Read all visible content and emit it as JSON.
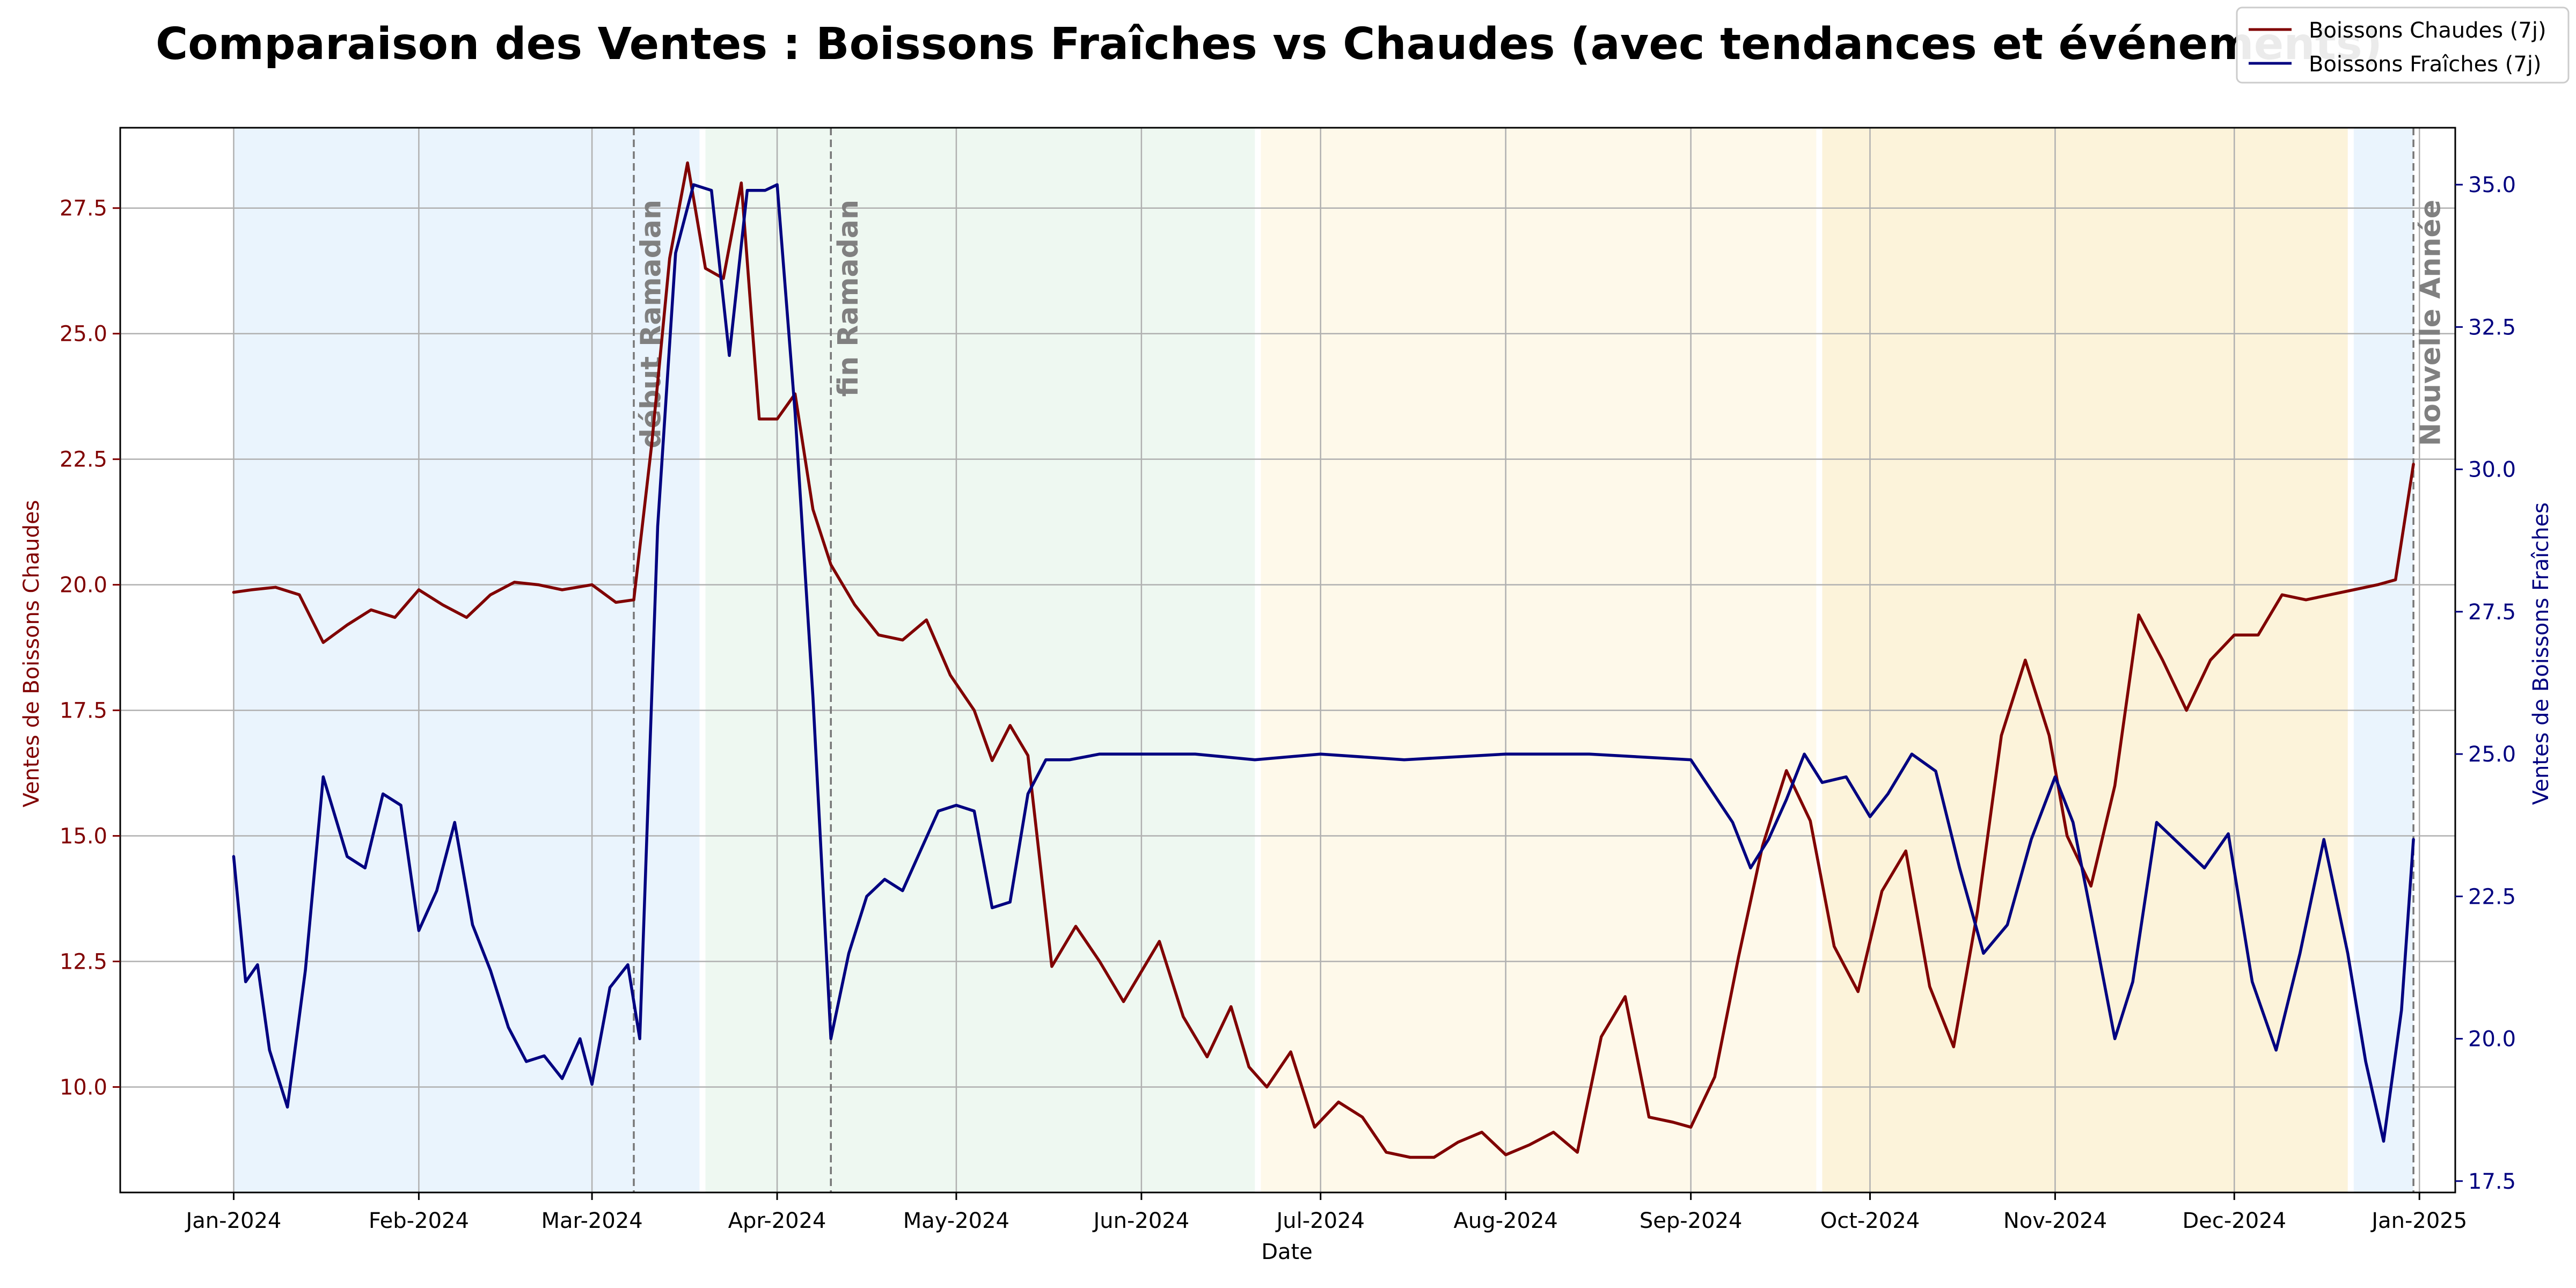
{
  "chart_data": {
    "type": "line",
    "title": "Comparaison des Ventes : Boissons Fraîches vs Chaudes (avec tendances et événements)",
    "xlabel": "Date",
    "ylabel_left": "Ventes de Boissons Chaudes",
    "ylabel_right": "Ventes de Boissons Fraîches",
    "x_range": [
      "2023-12-13",
      "2025-01-07"
    ],
    "ylim_left": [
      7.9,
      29.1
    ],
    "ylim_right": [
      17.3,
      36.0
    ],
    "grid": true,
    "legend_position": "top-right",
    "x_ticks": [
      {
        "date": "2024-01-01",
        "label": "Jan-2024"
      },
      {
        "date": "2024-02-01",
        "label": "Feb-2024"
      },
      {
        "date": "2024-03-01",
        "label": "Mar-2024"
      },
      {
        "date": "2024-04-01",
        "label": "Apr-2024"
      },
      {
        "date": "2024-05-01",
        "label": "May-2024"
      },
      {
        "date": "2024-06-01",
        "label": "Jun-2024"
      },
      {
        "date": "2024-07-01",
        "label": "Jul-2024"
      },
      {
        "date": "2024-08-01",
        "label": "Aug-2024"
      },
      {
        "date": "2024-09-01",
        "label": "Sep-2024"
      },
      {
        "date": "2024-10-01",
        "label": "Oct-2024"
      },
      {
        "date": "2024-11-01",
        "label": "Nov-2024"
      },
      {
        "date": "2024-12-01",
        "label": "Dec-2024"
      },
      {
        "date": "2025-01-01",
        "label": "Jan-2025"
      }
    ],
    "y_ticks_left": [
      "10.0",
      "12.5",
      "15.0",
      "17.5",
      "20.0",
      "22.5",
      "25.0",
      "27.5"
    ],
    "y_ticks_right": [
      "17.5",
      "20.0",
      "22.5",
      "25.0",
      "27.5",
      "30.0",
      "32.5",
      "35.0"
    ],
    "seasons": [
      {
        "start": "2024-01-01",
        "end": "2024-03-19",
        "color": "#eaf4fd"
      },
      {
        "start": "2024-03-20",
        "end": "2024-06-20",
        "color": "#eef8f1"
      },
      {
        "start": "2024-06-21",
        "end": "2024-09-22",
        "color": "#fef9ea"
      },
      {
        "start": "2024-09-23",
        "end": "2024-12-20",
        "color": "#fcf3da"
      },
      {
        "start": "2024-12-21",
        "end": "2024-12-31",
        "color": "#eaf4fd"
      }
    ],
    "events": [
      {
        "date": "2024-03-08",
        "label": "début Ramadan"
      },
      {
        "date": "2024-04-10",
        "label": "fin Ramadan"
      },
      {
        "date": "2024-12-31",
        "label": "Nouvelle Année"
      }
    ],
    "series": [
      {
        "name": "Boissons Chaudes (7j)",
        "axis": "left",
        "color": "#800000",
        "x": [
          "2024-01-01",
          "2024-01-04",
          "2024-01-08",
          "2024-01-12",
          "2024-01-16",
          "2024-01-20",
          "2024-01-24",
          "2024-01-28",
          "2024-02-01",
          "2024-02-05",
          "2024-02-09",
          "2024-02-13",
          "2024-02-17",
          "2024-02-21",
          "2024-02-25",
          "2024-03-01",
          "2024-03-05",
          "2024-03-08",
          "2024-03-11",
          "2024-03-14",
          "2024-03-17",
          "2024-03-20",
          "2024-03-23",
          "2024-03-26",
          "2024-03-29",
          "2024-04-01",
          "2024-04-04",
          "2024-04-07",
          "2024-04-10",
          "2024-04-14",
          "2024-04-18",
          "2024-04-22",
          "2024-04-26",
          "2024-04-30",
          "2024-05-04",
          "2024-05-07",
          "2024-05-10",
          "2024-05-13",
          "2024-05-17",
          "2024-05-21",
          "2024-05-25",
          "2024-05-29",
          "2024-06-01",
          "2024-06-04",
          "2024-06-08",
          "2024-06-12",
          "2024-06-16",
          "2024-06-19",
          "2024-06-22",
          "2024-06-26",
          "2024-06-30",
          "2024-07-04",
          "2024-07-08",
          "2024-07-12",
          "2024-07-16",
          "2024-07-20",
          "2024-07-24",
          "2024-07-28",
          "2024-08-01",
          "2024-08-05",
          "2024-08-09",
          "2024-08-13",
          "2024-08-17",
          "2024-08-21",
          "2024-08-25",
          "2024-08-29",
          "2024-09-01",
          "2024-09-05",
          "2024-09-09",
          "2024-09-13",
          "2024-09-17",
          "2024-09-21",
          "2024-09-25",
          "2024-09-29",
          "2024-10-03",
          "2024-10-07",
          "2024-10-11",
          "2024-10-15",
          "2024-10-19",
          "2024-10-23",
          "2024-10-27",
          "2024-10-31",
          "2024-11-03",
          "2024-11-07",
          "2024-11-11",
          "2024-11-15",
          "2024-11-19",
          "2024-11-23",
          "2024-11-27",
          "2024-12-01",
          "2024-12-05",
          "2024-12-09",
          "2024-12-13",
          "2024-12-17",
          "2024-12-21",
          "2024-12-25",
          "2024-12-28",
          "2024-12-31"
        ],
        "y": [
          19.85,
          19.9,
          19.95,
          19.8,
          18.85,
          19.2,
          19.5,
          19.35,
          19.9,
          19.6,
          19.35,
          19.8,
          20.05,
          20.0,
          19.9,
          20.0,
          19.65,
          19.7,
          22.8,
          26.5,
          28.4,
          26.3,
          26.1,
          28.0,
          23.3,
          23.3,
          23.8,
          21.5,
          20.4,
          19.6,
          19.0,
          18.9,
          19.3,
          18.2,
          17.5,
          16.5,
          17.2,
          16.6,
          12.4,
          13.2,
          12.5,
          11.7,
          12.3,
          12.9,
          11.4,
          10.6,
          11.6,
          10.4,
          10.0,
          10.7,
          9.2,
          9.7,
          9.4,
          8.7,
          8.6,
          8.6,
          8.9,
          9.1,
          8.65,
          8.85,
          9.1,
          8.7,
          11.0,
          11.8,
          9.4,
          9.3,
          9.2,
          10.2,
          12.6,
          14.8,
          16.3,
          15.3,
          12.8,
          11.9,
          13.9,
          14.7,
          12.0,
          10.8,
          13.5,
          17.0,
          18.5,
          17.0,
          15.0,
          14.0,
          16.0,
          19.4,
          18.5,
          17.5,
          18.5,
          19.0,
          19.0,
          19.8,
          19.7,
          19.8,
          19.9,
          20.0,
          20.1,
          22.4
        ]
      },
      {
        "name": "Boissons Fraîches (7j)",
        "axis": "right",
        "color": "#000080",
        "x": [
          "2024-01-01",
          "2024-01-03",
          "2024-01-05",
          "2024-01-07",
          "2024-01-10",
          "2024-01-13",
          "2024-01-16",
          "2024-01-20",
          "2024-01-23",
          "2024-01-26",
          "2024-01-29",
          "2024-02-01",
          "2024-02-04",
          "2024-02-07",
          "2024-02-10",
          "2024-02-13",
          "2024-02-16",
          "2024-02-19",
          "2024-02-22",
          "2024-02-25",
          "2024-02-28",
          "2024-03-01",
          "2024-03-04",
          "2024-03-07",
          "2024-03-09",
          "2024-03-12",
          "2024-03-15",
          "2024-03-18",
          "2024-03-21",
          "2024-03-24",
          "2024-03-27",
          "2024-03-30",
          "2024-04-01",
          "2024-04-04",
          "2024-04-07",
          "2024-04-10",
          "2024-04-13",
          "2024-04-16",
          "2024-04-19",
          "2024-04-22",
          "2024-04-25",
          "2024-04-28",
          "2024-05-01",
          "2024-05-04",
          "2024-05-07",
          "2024-05-10",
          "2024-05-13",
          "2024-05-16",
          "2024-05-20",
          "2024-05-25",
          "2024-06-01",
          "2024-06-10",
          "2024-06-20",
          "2024-07-01",
          "2024-07-15",
          "2024-08-01",
          "2024-08-15",
          "2024-09-01",
          "2024-09-08",
          "2024-09-11",
          "2024-09-14",
          "2024-09-17",
          "2024-09-20",
          "2024-09-23",
          "2024-09-27",
          "2024-10-01",
          "2024-10-04",
          "2024-10-08",
          "2024-10-12",
          "2024-10-16",
          "2024-10-20",
          "2024-10-24",
          "2024-10-28",
          "2024-11-01",
          "2024-11-04",
          "2024-11-07",
          "2024-11-11",
          "2024-11-14",
          "2024-11-18",
          "2024-11-22",
          "2024-11-26",
          "2024-11-30",
          "2024-12-04",
          "2024-12-08",
          "2024-12-12",
          "2024-12-16",
          "2024-12-20",
          "2024-12-23",
          "2024-12-26",
          "2024-12-29",
          "2024-12-31"
        ],
        "y": [
          23.2,
          21.0,
          21.3,
          19.8,
          18.8,
          21.2,
          24.6,
          23.2,
          23.0,
          24.3,
          24.1,
          21.9,
          22.6,
          23.8,
          22.0,
          21.2,
          20.2,
          19.6,
          19.7,
          19.3,
          20.0,
          19.2,
          20.9,
          21.3,
          20.0,
          29.0,
          33.8,
          35.0,
          34.9,
          32.0,
          34.9,
          34.9,
          35.0,
          31.0,
          26.0,
          20.0,
          21.5,
          22.5,
          22.8,
          22.6,
          23.3,
          24.0,
          24.1,
          24.0,
          22.3,
          22.4,
          24.3,
          24.9,
          24.9,
          25.0,
          25.0,
          25.0,
          24.9,
          25.0,
          24.9,
          25.0,
          25.0,
          24.9,
          23.8,
          23.0,
          23.5,
          24.2,
          25.0,
          24.5,
          24.6,
          23.9,
          24.3,
          25.0,
          24.7,
          23.0,
          21.5,
          22.0,
          23.5,
          24.6,
          23.8,
          22.2,
          20.0,
          21.0,
          23.8,
          23.4,
          23.0,
          23.6,
          21.0,
          19.8,
          21.5,
          23.5,
          21.5,
          19.6,
          18.2,
          20.5,
          23.5
        ]
      }
    ]
  }
}
